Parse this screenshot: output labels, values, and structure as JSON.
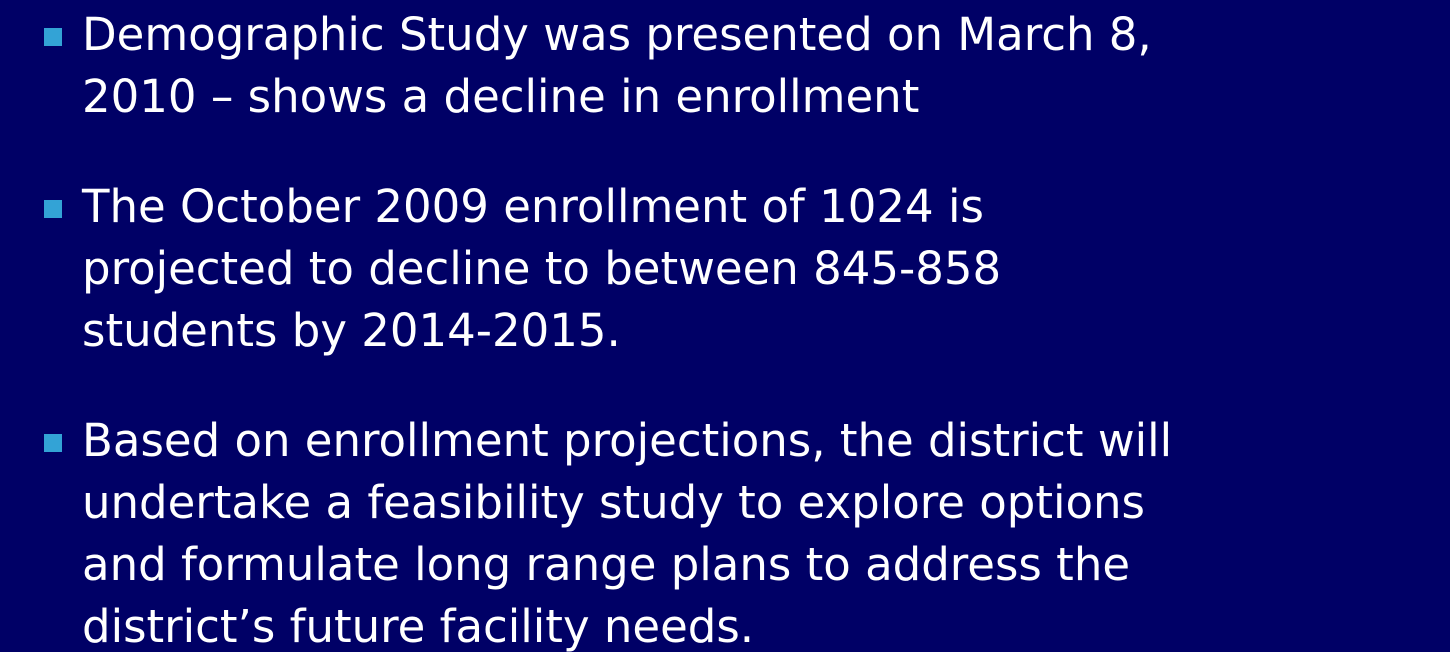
{
  "bullets": [
    {
      "lines": [
        "Demographic Study was presented on March 8,",
        "2010 – shows a decline in enrollment"
      ]
    },
    {
      "lines": [
        "The October 2009 enrollment of 1024 is",
        "projected to decline to between 845-858",
        "students by 2014-2015."
      ]
    },
    {
      "lines": [
        "Based on enrollment projections, the district will",
        "undertake a feasibility study to explore options",
        "and formulate long range plans to address the",
        "district’s future facility needs."
      ]
    }
  ]
}
